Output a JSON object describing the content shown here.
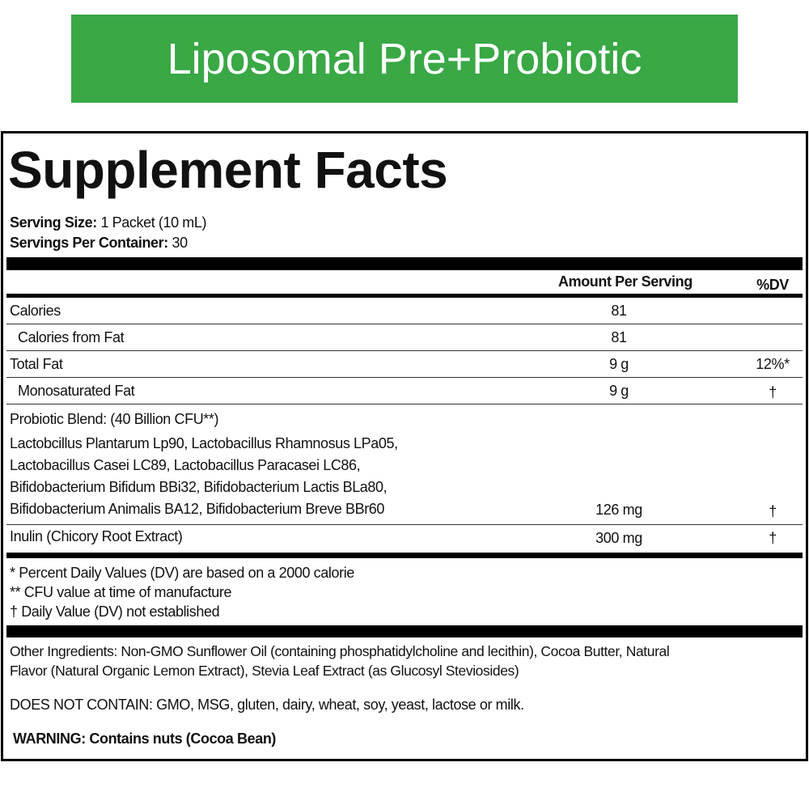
{
  "header": {
    "title": "Liposomal Pre+Probiotic"
  },
  "panel": {
    "title": "Supplement Facts",
    "serving_size": {
      "label": "Serving Size:",
      "value": "1 Packet (10 mL)"
    },
    "servings_per_container": {
      "label": "Servings Per Container:",
      "value": "30"
    },
    "columns": [
      "Amount Per Serving",
      "%DV"
    ],
    "rows": [
      {
        "name": "Calories",
        "amount": "81"
      },
      {
        "name": "Calories from Fat",
        "amount": "81"
      },
      {
        "name": "Total Fat",
        "amount": "9 g",
        "dv": "12%*"
      },
      {
        "name": "Monosaturated Fat",
        "amount": "9 g",
        "dv": "†"
      },
      {
        "name": "Probiotic Blend: (40 Billion CFU**)",
        "details": [
          "Lactobcillus Plantarum Lp90, Lactobacillus Rhamnosus LPa05,",
          "Lactobacillus Casei LC89, Lactobacillus Paracasei LC86,",
          "Bifidobacterium Bifidum BBi32, Bifidobacterium Lactis BLa80,",
          "Bifidobacterium Animalis BA12, Bifidobacterium Breve BBr60"
        ],
        "amount": "126 mg",
        "dv": "†"
      },
      {
        "name": "Inulin",
        "note": "(Chicory Root Extract)",
        "amount": "300 mg",
        "dv": "†"
      }
    ],
    "footnotes": [
      "* Percent Daily Values (DV) are based on a 2000 calorie",
      "** CFU value at time of manufacture",
      "† Daily Value (DV) not established"
    ],
    "other_ingredients": {
      "label": "Other Ingredients:",
      "lines": [
        "Non-GMO Sunflower Oil (containing phosphatidylcholine and lecithin), Cocoa Butter, Natural",
        "Flavor (Natural Organic Lemon Extract), Stevia Leaf Extract (as Glucosyl Steviosides)"
      ]
    },
    "does_not_contain": {
      "label": "DOES NOT CONTAIN:",
      "value": "GMO, MSG, gluten, dairy, wheat, soy, yeast, lactose or milk."
    },
    "warning": "WARNING: Contains nuts (Cocoa Bean)"
  }
}
